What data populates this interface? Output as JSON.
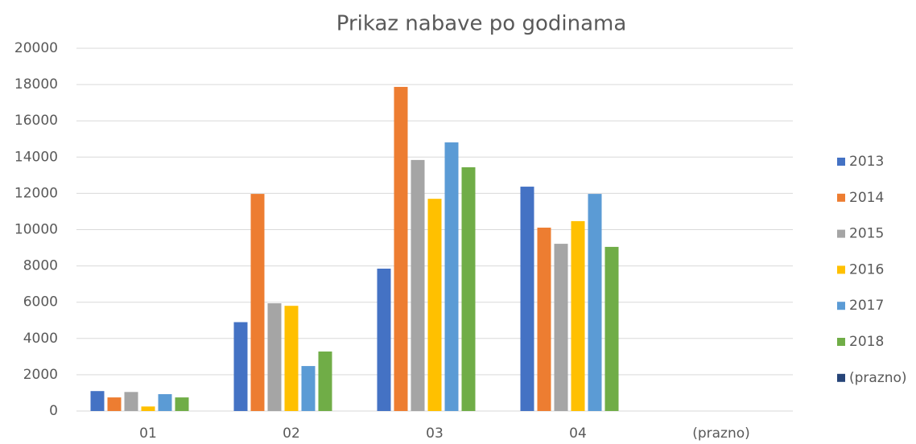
{
  "chart_data": {
    "type": "bar",
    "title": "Prikaz nabave po godinama",
    "categories": [
      "01",
      "02",
      "03",
      "04",
      "(prazno)"
    ],
    "series": [
      {
        "name": "2013",
        "color": "#4472c4",
        "values": [
          1100,
          4900,
          7850,
          12370,
          null
        ]
      },
      {
        "name": "2014",
        "color": "#ed7d31",
        "values": [
          750,
          11970,
          17870,
          10110,
          null
        ]
      },
      {
        "name": "2015",
        "color": "#a5a5a5",
        "values": [
          1050,
          5940,
          13840,
          9220,
          null
        ]
      },
      {
        "name": "2016",
        "color": "#ffc000",
        "values": [
          250,
          5800,
          11700,
          10470,
          null
        ]
      },
      {
        "name": "2017",
        "color": "#5b9bd5",
        "values": [
          930,
          2480,
          14810,
          11970,
          null
        ]
      },
      {
        "name": "2018",
        "color": "#70ad47",
        "values": [
          750,
          3280,
          13440,
          9050,
          null
        ]
      },
      {
        "name": "(prazno)",
        "color": "#264478",
        "values": [
          null,
          null,
          null,
          null,
          null
        ]
      }
    ],
    "ylim": [
      0,
      20000
    ],
    "yticks": [
      0,
      2000,
      4000,
      6000,
      8000,
      10000,
      12000,
      14000,
      16000,
      18000,
      20000
    ],
    "grid": true,
    "legend": "right"
  }
}
